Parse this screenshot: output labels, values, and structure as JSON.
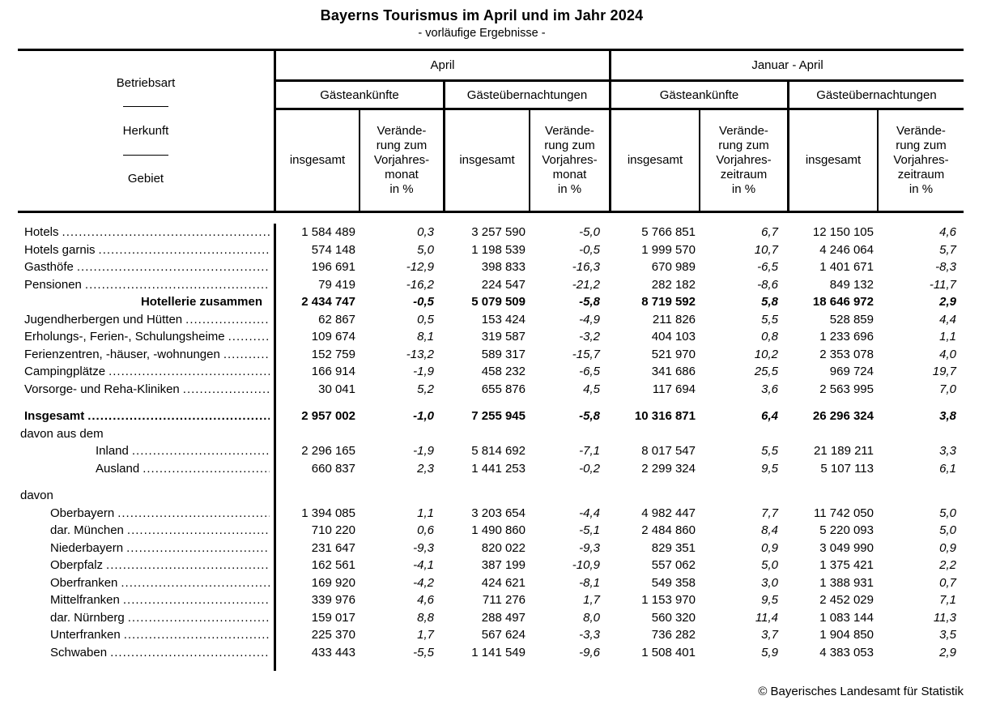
{
  "title": "Bayerns Tourismus im April und im Jahr 2024",
  "subtitle": "- vorläufige Ergebnisse -",
  "footer": "© Bayerisches Landesamt für Statistik",
  "table": {
    "stub": [
      "Betriebsart",
      "Herkunft",
      "Gebiet"
    ],
    "periods": [
      {
        "label": "April"
      },
      {
        "label": "Januar - April"
      }
    ],
    "metrics": [
      "Gästeankünfte",
      "Gästeübernachtungen",
      "Gästeankünfte",
      "Gästeübernachtungen"
    ],
    "col_headers": [
      "insgesamt",
      "Verände-\nrung zum\nVorjahres-\nmonat\nin %",
      "insgesamt",
      "Verände-\nrung zum\nVorjahres-\nmonat\nin %",
      "insgesamt",
      "Verände-\nrung zum\nVorjahres-\nzeitraum\nin %",
      "insgesamt",
      "Verände-\nrung zum\nVorjahres-\nzeitraum\nin %"
    ],
    "rows": [
      {
        "label": "Hotels",
        "style": "item",
        "dots": true,
        "values": [
          "1 584 489",
          "0,3",
          "3 257 590",
          "-5,0",
          "5 766 851",
          "6,7",
          "12 150 105",
          "4,6"
        ]
      },
      {
        "label": "Hotels garnis",
        "style": "item",
        "dots": true,
        "values": [
          "574 148",
          "5,0",
          "1 198 539",
          "-0,5",
          "1 999 570",
          "10,7",
          "4 246 064",
          "5,7"
        ]
      },
      {
        "label": "Gasthöfe",
        "style": "item",
        "dots": true,
        "values": [
          "196 691",
          "-12,9",
          "398 833",
          "-16,3",
          "670 989",
          "-6,5",
          "1 401 671",
          "-8,3"
        ]
      },
      {
        "label": "Pensionen",
        "style": "item",
        "dots": true,
        "values": [
          "79 419",
          "-16,2",
          "224 547",
          "-21,2",
          "282 182",
          "-8,6",
          "849 132",
          "-11,7"
        ]
      },
      {
        "label": "Hotellerie zusammen",
        "style": "subtotal",
        "dots": false,
        "values": [
          "2 434 747",
          "-0,5",
          "5 079 509",
          "-5,8",
          "8 719 592",
          "5,8",
          "18 646 972",
          "2,9"
        ]
      },
      {
        "label": "Jugendherbergen und Hütten",
        "style": "item",
        "dots": true,
        "values": [
          "62 867",
          "0,5",
          "153 424",
          "-4,9",
          "211 826",
          "5,5",
          "528 859",
          "4,4"
        ]
      },
      {
        "label": "Erholungs-, Ferien-, Schulungsheime",
        "style": "item",
        "dots": true,
        "values": [
          "109 674",
          "8,1",
          "319 587",
          "-3,2",
          "404 103",
          "0,8",
          "1 233 696",
          "1,1"
        ]
      },
      {
        "label": "Ferienzentren, -häuser, -wohnungen",
        "style": "item",
        "dots": true,
        "values": [
          "152 759",
          "-13,2",
          "589 317",
          "-15,7",
          "521 970",
          "10,2",
          "2 353 078",
          "4,0"
        ]
      },
      {
        "label": "Campingplätze",
        "style": "item",
        "dots": true,
        "values": [
          "166 914",
          "-1,9",
          "458 232",
          "-6,5",
          "341 686",
          "25,5",
          "969 724",
          "19,7"
        ]
      },
      {
        "label": "Vorsorge- und Reha-Kliniken",
        "style": "item",
        "dots": true,
        "values": [
          "30 041",
          "5,2",
          "655 876",
          "4,5",
          "117 694",
          "3,6",
          "2 563 995",
          "7,0"
        ]
      },
      {
        "style": "spacer"
      },
      {
        "label": "Insgesamt",
        "style": "total",
        "dots": true,
        "values": [
          "2 957 002",
          "-1,0",
          "7 255 945",
          "-5,8",
          "10 316 871",
          "6,4",
          "26 296 324",
          "3,8"
        ]
      },
      {
        "label": "davon aus dem",
        "style": "group",
        "dots": false,
        "values": null
      },
      {
        "label": "Inland",
        "style": "sub",
        "dots": true,
        "values": [
          "2 296 165",
          "-1,9",
          "5 814 692",
          "-7,1",
          "8 017 547",
          "5,5",
          "21 189 211",
          "3,3"
        ]
      },
      {
        "label": "Ausland",
        "style": "sub",
        "dots": true,
        "values": [
          "660 837",
          "2,3",
          "1 441 253",
          "-0,2",
          "2 299 324",
          "9,5",
          "5 107 113",
          "6,1"
        ]
      },
      {
        "style": "spacer"
      },
      {
        "label": "davon",
        "style": "group",
        "dots": false,
        "values": null
      },
      {
        "label": "Oberbayern",
        "style": "region",
        "dots": true,
        "values": [
          "1 394 085",
          "1,1",
          "3 203 654",
          "-4,4",
          "4 982 447",
          "7,7",
          "11 742 050",
          "5,0"
        ]
      },
      {
        "label": "dar. München",
        "style": "region",
        "dots": true,
        "values": [
          "710 220",
          "0,6",
          "1 490 860",
          "-5,1",
          "2 484 860",
          "8,4",
          "5 220 093",
          "5,0"
        ]
      },
      {
        "label": "Niederbayern",
        "style": "region",
        "dots": true,
        "values": [
          "231 647",
          "-9,3",
          "820 022",
          "-9,3",
          "829 351",
          "0,9",
          "3 049 990",
          "0,9"
        ]
      },
      {
        "label": "Oberpfalz",
        "style": "region",
        "dots": true,
        "values": [
          "162 561",
          "-4,1",
          "387 199",
          "-10,9",
          "557 062",
          "5,0",
          "1 375 421",
          "2,2"
        ]
      },
      {
        "label": "Oberfranken",
        "style": "region",
        "dots": true,
        "values": [
          "169 920",
          "-4,2",
          "424 621",
          "-8,1",
          "549 358",
          "3,0",
          "1 388 931",
          "0,7"
        ]
      },
      {
        "label": "Mittelfranken",
        "style": "region",
        "dots": true,
        "values": [
          "339 976",
          "4,6",
          "711 276",
          "1,7",
          "1 153 970",
          "9,5",
          "2 452 029",
          "7,1"
        ]
      },
      {
        "label": "dar. Nürnberg",
        "style": "region",
        "dots": true,
        "values": [
          "159 017",
          "8,8",
          "288 497",
          "8,0",
          "560 320",
          "11,4",
          "1 083 144",
          "11,3"
        ]
      },
      {
        "label": "Unterfranken",
        "style": "region",
        "dots": true,
        "values": [
          "225 370",
          "1,7",
          "567 624",
          "-3,3",
          "736 282",
          "3,7",
          "1 904 850",
          "3,5"
        ]
      },
      {
        "label": "Schwaben",
        "style": "region",
        "dots": true,
        "values": [
          "433 443",
          "-5,5",
          "1 141 549",
          "-9,6",
          "1 508 401",
          "5,9",
          "4 383 053",
          "2,9"
        ]
      },
      {
        "style": "spacer"
      }
    ]
  }
}
